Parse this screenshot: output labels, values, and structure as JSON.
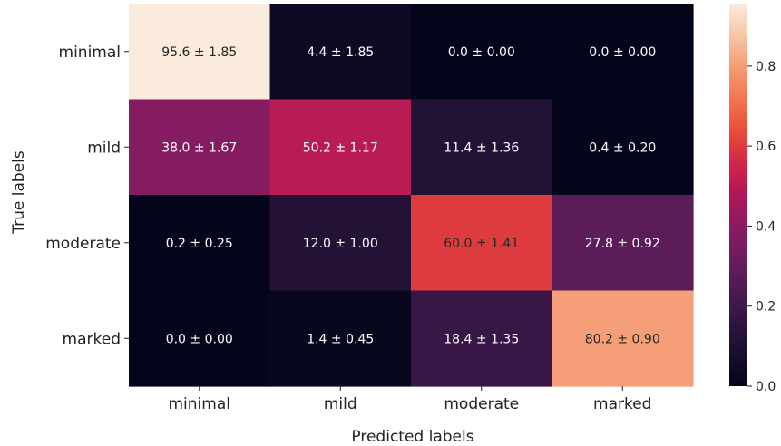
{
  "chart_data": {
    "type": "heatmap",
    "title": "",
    "xlabel": "Predicted labels",
    "ylabel": "True labels",
    "x_categories": [
      "minimal",
      "mild",
      "moderate",
      "marked"
    ],
    "y_categories": [
      "minimal",
      "mild",
      "moderate",
      "marked"
    ],
    "values": [
      [
        95.6,
        4.4,
        0.0,
        0.0
      ],
      [
        38.0,
        50.2,
        11.4,
        0.4
      ],
      [
        0.2,
        12.0,
        60.0,
        27.8
      ],
      [
        0.0,
        1.4,
        18.4,
        80.2
      ]
    ],
    "std": [
      [
        1.85,
        1.85,
        0.0,
        0.0
      ],
      [
        1.67,
        1.17,
        1.36,
        0.2
      ],
      [
        0.25,
        1.0,
        1.41,
        0.92
      ],
      [
        0.0,
        0.45,
        1.35,
        0.9
      ]
    ],
    "annotations": [
      [
        "95.6 ± 1.85",
        "4.4 ± 1.85",
        "0.0 ± 0.00",
        "0.0 ± 0.00"
      ],
      [
        "38.0 ± 1.67",
        "50.2 ± 1.17",
        "11.4 ± 1.36",
        "0.4 ± 0.20"
      ],
      [
        "0.2 ± 0.25",
        "12.0 ± 1.00",
        "60.0 ± 1.41",
        "27.8 ± 0.92"
      ],
      [
        "0.0 ± 0.00",
        "1.4 ± 0.45",
        "18.4 ± 1.35",
        "80.2 ± 0.90"
      ]
    ],
    "colorbar": {
      "range": [
        0.0,
        0.956
      ],
      "ticks": [
        0.0,
        0.2,
        0.4,
        0.6,
        0.8
      ],
      "tick_labels": [
        "0.0",
        "0.2",
        "0.4",
        "0.6",
        "0.8"
      ]
    },
    "colormap": "rocket"
  }
}
